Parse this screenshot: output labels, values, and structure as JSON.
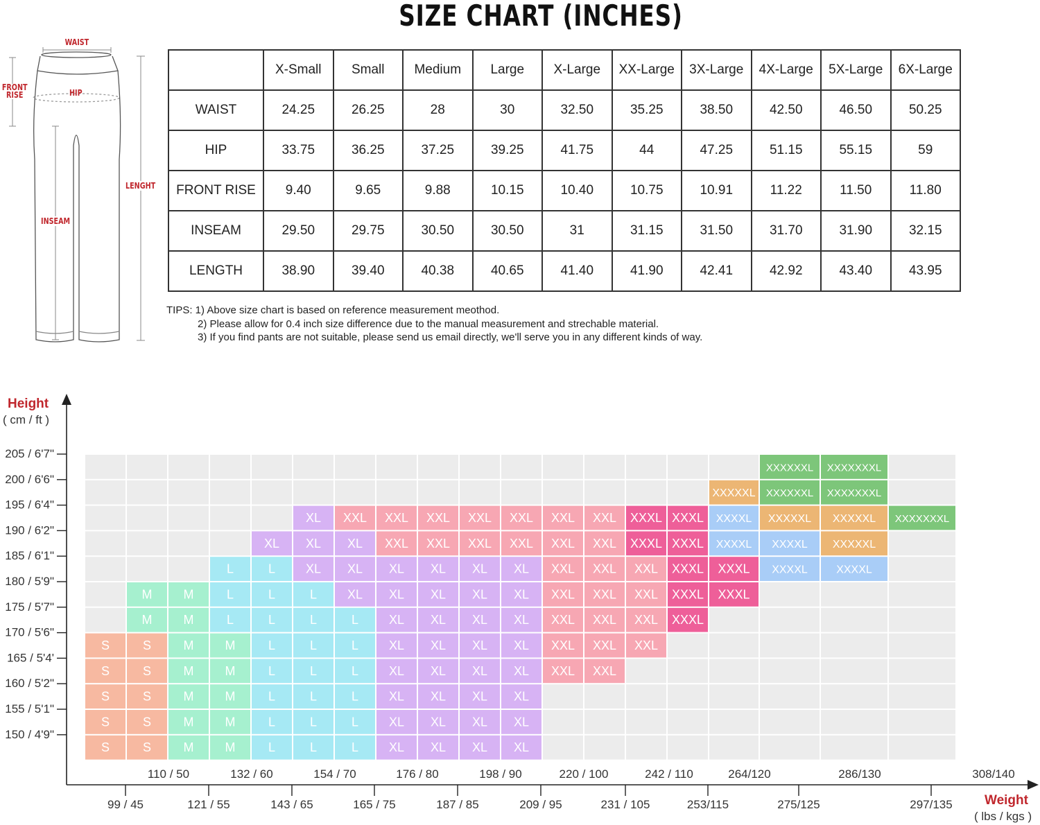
{
  "title": "SIZE CHART (INCHES)",
  "pants_diagram": {
    "labels": {
      "waist": "WAIST",
      "hip": "HIP",
      "front_rise": "FRONT RISE",
      "inseam": "INSEAM",
      "length": "LENGHT"
    }
  },
  "size_table": {
    "columns": [
      "X-Small",
      "Small",
      "Medium",
      "Large",
      "X-Large",
      "XX-Large",
      "3X-Large",
      "4X-Large",
      "5X-Large",
      "6X-Large"
    ],
    "rows": [
      {
        "label": "WAIST",
        "values": [
          "24.25",
          "26.25",
          "28",
          "30",
          "32.50",
          "35.25",
          "38.50",
          "42.50",
          "46.50",
          "50.25"
        ]
      },
      {
        "label": "HIP",
        "values": [
          "33.75",
          "36.25",
          "37.25",
          "39.25",
          "41.75",
          "44",
          "47.25",
          "51.15",
          "55.15",
          "59"
        ]
      },
      {
        "label": "FRONT RISE",
        "values": [
          "9.40",
          "9.65",
          "9.88",
          "10.15",
          "10.40",
          "10.75",
          "10.91",
          "11.22",
          "11.50",
          "11.80"
        ]
      },
      {
        "label": "INSEAM",
        "values": [
          "29.50",
          "29.75",
          "30.50",
          "30.50",
          "31",
          "31.15",
          "31.50",
          "31.70",
          "31.90",
          "32.15"
        ]
      },
      {
        "label": "LENGTH",
        "values": [
          "38.90",
          "39.40",
          "40.38",
          "40.65",
          "41.40",
          "41.90",
          "42.41",
          "42.92",
          "43.40",
          "43.95"
        ]
      }
    ]
  },
  "tips": [
    "TIPS: 1) Above size chart is based on reference measurement meothod.",
    "2) Please allow for 0.4 inch size difference due to the manual measurement and strechable material.",
    "3) If you find pants are not suitable, please send us email directly, we'll serve you in any different kinds of way."
  ],
  "fit_chart": {
    "y_axis_title": "Height",
    "y_axis_unit": "( cm / ft )",
    "x_axis_title": "Weight",
    "x_axis_unit": "( lbs / kgs )",
    "y_labels": [
      "205 / 6'7\"",
      "200 / 6'6\"",
      "195 / 6'4\"",
      "190 / 6'2\"",
      "185 / 6'1\"",
      "180 / 5'9\"",
      "175 / 5'7\"",
      "170 / 5'6\"",
      "165 / 5'4'",
      "160 / 5'2\"",
      "155 / 5'1\"",
      "150 / 4'9\""
    ],
    "x_labels_upper": [
      "110 / 50",
      "132 / 60",
      "154 / 70",
      "176 / 80",
      "198 / 90",
      "220 / 100",
      "242 / 110",
      "264/120",
      "286/130",
      "308/140"
    ],
    "x_labels_lower": [
      "99 / 45",
      "121 / 55",
      "143 / 65",
      "165 / 75",
      "187 / 85",
      "209 / 95",
      "231 / 105",
      "253/115",
      "275/125",
      "297/135"
    ],
    "colors": {
      "S": "#f7b9a1",
      "M": "#a6f0cf",
      "L": "#a6e9f4",
      "XL": "#d7b3f4",
      "XXL": "#f7a7b3",
      "XXXL": "#ee5f99",
      "XXXXL": "#a9cdf7",
      "XXXXXL": "#ecb674",
      "XXXXXXL": "#7dc67a",
      "XXXXXXXL": "#7dc67a",
      "empty": "#ececec"
    },
    "grid": [
      [
        "",
        "",
        "",
        "",
        "",
        "",
        "",
        "",
        "",
        "",
        "",
        "",
        "",
        "",
        "",
        "",
        "XXXXXXL",
        "XXXXXXXL"
      ],
      [
        "",
        "",
        "",
        "",
        "",
        "",
        "",
        "",
        "",
        "",
        "",
        "",
        "",
        "",
        "",
        "XXXXXL",
        "XXXXXXL",
        "XXXXXXXL"
      ],
      [
        "",
        "",
        "",
        "",
        "",
        "XL",
        "XXL",
        "XXL",
        "XXL",
        "XXL",
        "XXL",
        "XXL",
        "XXL",
        "XXXL",
        "XXXL",
        "XXXXL",
        "XXXXXL",
        "XXXXXL",
        "XXXXXXXL"
      ],
      [
        "",
        "",
        "",
        "",
        "XL",
        "XL",
        "XL",
        "XXL",
        "XXL",
        "XXL",
        "XXL",
        "XXL",
        "XXL",
        "XXXL",
        "XXXL",
        "XXXXL",
        "XXXXL",
        "XXXXXL"
      ],
      [
        "",
        "",
        "",
        "L",
        "L",
        "XL",
        "XL",
        "XL",
        "XL",
        "XL",
        "XL",
        "XXL",
        "XXL",
        "XXL",
        "XXXL",
        "XXXL",
        "XXXXL",
        "XXXXL"
      ],
      [
        "",
        "M",
        "M",
        "L",
        "L",
        "L",
        "XL",
        "XL",
        "XL",
        "XL",
        "XL",
        "XXL",
        "XXL",
        "XXL",
        "XXXL",
        "XXXL"
      ],
      [
        "",
        "M",
        "M",
        "L",
        "L",
        "L",
        "L",
        "XL",
        "XL",
        "XL",
        "XL",
        "XXL",
        "XXL",
        "XXL",
        "XXXL"
      ],
      [
        "S",
        "S",
        "M",
        "M",
        "L",
        "L",
        "L",
        "XL",
        "XL",
        "XL",
        "XL",
        "XXL",
        "XXL",
        "XXL"
      ],
      [
        "S",
        "S",
        "M",
        "M",
        "L",
        "L",
        "L",
        "XL",
        "XL",
        "XL",
        "XL",
        "XXL",
        "XXL"
      ],
      [
        "S",
        "S",
        "M",
        "M",
        "L",
        "L",
        "L",
        "XL",
        "XL",
        "XL",
        "XL"
      ],
      [
        "S",
        "S",
        "M",
        "M",
        "L",
        "L",
        "L",
        "XL",
        "XL",
        "XL",
        "XL"
      ],
      [
        "S",
        "S",
        "M",
        "M",
        "L",
        "L",
        "L",
        "XL",
        "XL",
        "XL",
        "XL"
      ]
    ]
  }
}
